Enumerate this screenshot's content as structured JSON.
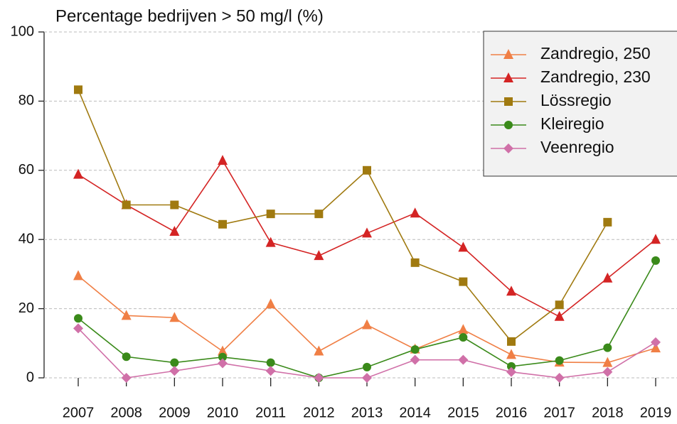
{
  "chart_data": {
    "type": "line",
    "title": "Percentage bedrijven > 50 mg/l (%)",
    "categories": [
      "2007",
      "2008",
      "2009",
      "2010",
      "2011",
      "2012",
      "2013",
      "2014",
      "2015",
      "2016",
      "2017",
      "2018",
      "2019"
    ],
    "ylim": [
      0,
      100
    ],
    "yticks": [
      0,
      20,
      40,
      60,
      80,
      100
    ],
    "grid": true,
    "legend": "top right",
    "series": [
      {
        "name": "Zandregio, 250",
        "color": "#f07f45",
        "marker": "triangle",
        "values": [
          29.5,
          18,
          17.4,
          7.7,
          21.3,
          7.7,
          15.3,
          8.3,
          13.9,
          6.7,
          4.5,
          4.4,
          8.6
        ]
      },
      {
        "name": "Zandregio, 230",
        "color": "#d42424",
        "marker": "triangle",
        "values": [
          58.8,
          50,
          42.3,
          62.8,
          39.1,
          35.3,
          41.8,
          47.6,
          37.7,
          25,
          17.7,
          28.8,
          40
        ]
      },
      {
        "name": "Lössregio",
        "color": "#a07a10",
        "marker": "square",
        "values": [
          83.3,
          50,
          50,
          44.4,
          47.4,
          47.4,
          60,
          33.3,
          27.8,
          10.5,
          21.1,
          45,
          null
        ]
      },
      {
        "name": "Kleiregio",
        "color": "#3a8a1a",
        "marker": "circle",
        "values": [
          17.2,
          6.1,
          4.4,
          6,
          4.4,
          0,
          3.1,
          8.2,
          11.7,
          3.3,
          5,
          8.7,
          33.9
        ]
      },
      {
        "name": "Veenregio",
        "color": "#d070a8",
        "marker": "diamond",
        "values": [
          14.3,
          0,
          2,
          4.2,
          2,
          0,
          0,
          5.2,
          5.2,
          1.7,
          0,
          1.7,
          10.3
        ]
      }
    ]
  }
}
